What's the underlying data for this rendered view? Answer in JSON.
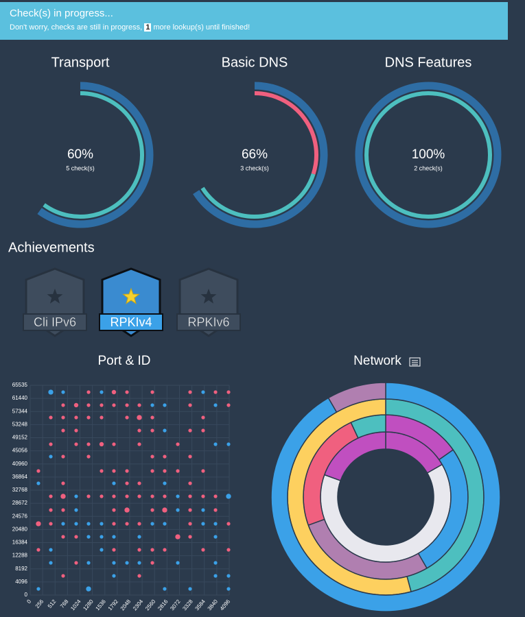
{
  "banner": {
    "title": "Check(s) in progress...",
    "text_before": "Don't worry, checks are still in progress,",
    "count": 1,
    "text_after": "more lookup(s) until finished!"
  },
  "achievements": {
    "title": "Achievements",
    "items": [
      {
        "label": "Cli IPv6",
        "earned": false
      },
      {
        "label": "RPKIv4",
        "earned": true
      },
      {
        "label": "RPKIv6",
        "earned": false
      }
    ]
  },
  "chart_data": [
    {
      "type": "gauge",
      "title": "Transport",
      "ylim": [
        0,
        100
      ],
      "value": 60,
      "value_label": "60%",
      "checks": "5 check(s)",
      "color": "#2e6da4",
      "segments": [
        {
          "color": "#4dbfbf",
          "value": 60
        }
      ]
    },
    {
      "type": "gauge",
      "title": "Basic DNS",
      "ylim": [
        0,
        100
      ],
      "value": 66,
      "value_label": "66%",
      "checks": "3 check(s)",
      "color": "#2e6da4",
      "segments": [
        {
          "color": "#f0607f",
          "value": 30
        },
        {
          "color": "#4dbfbf",
          "value": 36
        }
      ]
    },
    {
      "type": "gauge",
      "title": "DNS Features",
      "ylim": [
        0,
        100
      ],
      "value": 100,
      "value_label": "100%",
      "checks": "2 check(s)",
      "color": "#2e6da4",
      "segments": [
        {
          "color": "#4dbfbf",
          "value": 100
        }
      ]
    },
    {
      "type": "scatter",
      "title": "Port & ID",
      "grid": true,
      "xlim": [
        0,
        4096
      ],
      "xticks": [
        0,
        256,
        512,
        768,
        1024,
        1280,
        1536,
        1792,
        2048,
        2304,
        2560,
        2816,
        3072,
        3328,
        3584,
        3840,
        4096
      ],
      "ylim": [
        0,
        65535
      ],
      "yticks": [
        0,
        4096,
        8192,
        12288,
        16384,
        20480,
        24576,
        28672,
        32768,
        36864,
        40960,
        45056,
        49152,
        53248,
        57344,
        61440,
        65535
      ],
      "series": [
        {
          "color": "#3ba1e8",
          "x": [
            424,
            678,
            1469,
            3559,
            2514,
            2768,
            3814,
            2768,
            3814,
            4082,
            424,
            169,
            1723,
            2768,
            946,
            3037,
            4082,
            946,
            3037,
            3559,
            678,
            946,
            1201,
            1469,
            2514,
            2768,
            3559,
            3814,
            1201,
            1469,
            1723,
            2246,
            3814,
            424,
            1469,
            424,
            1201,
            1723,
            1992,
            2246,
            3037,
            3814,
            1723,
            3814,
            4082,
            169,
            1201,
            2768,
            3291,
            4082
          ],
          "values": [
            63395,
            63395,
            63395,
            63395,
            59326,
            59326,
            59326,
            51400,
            47118,
            47118,
            43264,
            34913,
            34913,
            34913,
            30843,
            30843,
            30843,
            26559,
            26559,
            26559,
            22275,
            22275,
            22275,
            22275,
            22275,
            22275,
            22275,
            22275,
            18205,
            18205,
            18205,
            18205,
            18205,
            14136,
            14136,
            10066,
            10066,
            10066,
            10066,
            10066,
            10066,
            10066,
            5997,
            5997,
            5997,
            1928,
            1928,
            1928,
            1928,
            1928
          ],
          "sizes": [
            2,
            1,
            1,
            1,
            1,
            1,
            1,
            1,
            1,
            1,
            1,
            1,
            1,
            1,
            1,
            1,
            2,
            1,
            1,
            1,
            1,
            1,
            1,
            1,
            1,
            1,
            1,
            1,
            1,
            1,
            1,
            1,
            1,
            1,
            1,
            1,
            1,
            1,
            1,
            1,
            1,
            1,
            1,
            1,
            1,
            1,
            2,
            1,
            1,
            1
          ]
        },
        {
          "color": "#f0607f",
          "x": [
            1201,
            1723,
            1992,
            2514,
            3291,
            3814,
            4082,
            678,
            946,
            1201,
            1469,
            1723,
            1992,
            2246,
            3291,
            4082,
            424,
            678,
            946,
            1201,
            1469,
            1992,
            2246,
            2514,
            3559,
            678,
            946,
            2246,
            2514,
            3291,
            3559,
            424,
            946,
            1201,
            1469,
            1723,
            2246,
            3037,
            678,
            1201,
            2514,
            2768,
            3291,
            169,
            1469,
            1723,
            1992,
            2514,
            2768,
            3037,
            3559,
            678,
            1992,
            2246,
            3291,
            424,
            678,
            1201,
            1469,
            1723,
            1992,
            2246,
            2514,
            2768,
            3291,
            3559,
            3814,
            424,
            678,
            1723,
            1992,
            2514,
            2768,
            3291,
            3814,
            169,
            424,
            1723,
            1992,
            2246,
            3291,
            4082,
            678,
            946,
            3037,
            3291,
            169,
            1723,
            2246,
            2514,
            2768,
            3559,
            4082,
            946,
            2514,
            678,
            2246
          ],
          "values": [
            63395,
            63395,
            63395,
            63395,
            63395,
            63395,
            63395,
            59326,
            59326,
            59326,
            59326,
            59326,
            59326,
            59326,
            59326,
            59326,
            55470,
            55470,
            55470,
            55470,
            55470,
            55470,
            55470,
            55470,
            55470,
            51400,
            51400,
            51400,
            51400,
            51400,
            51400,
            47118,
            47118,
            47118,
            47118,
            47118,
            47118,
            47118,
            43264,
            43264,
            43264,
            43264,
            43264,
            38767,
            38767,
            38767,
            38767,
            38767,
            38767,
            38767,
            38767,
            34913,
            34913,
            34913,
            34913,
            30843,
            30843,
            30843,
            30843,
            30843,
            30843,
            30843,
            30843,
            30843,
            30843,
            30843,
            30843,
            26559,
            26559,
            26559,
            26559,
            26559,
            26559,
            26559,
            26559,
            22275,
            22275,
            22275,
            22275,
            22275,
            22275,
            22275,
            18205,
            18205,
            18205,
            18205,
            14136,
            14136,
            14136,
            14136,
            14136,
            14136,
            14136,
            10066,
            10066,
            5997,
            5997
          ],
          "sizes": [
            1,
            1.5,
            1,
            1,
            1,
            1,
            1,
            1,
            1.5,
            1,
            1,
            1,
            1,
            1,
            1,
            1,
            1,
            1,
            1,
            1,
            1,
            1,
            2,
            1,
            1,
            1,
            1,
            1,
            1,
            1,
            1,
            1,
            1,
            1,
            1.5,
            1,
            1,
            1,
            1,
            1,
            1,
            1,
            1,
            1,
            1,
            1,
            1,
            1,
            1,
            1,
            1,
            1,
            1,
            1,
            1,
            1,
            2,
            1,
            1,
            1,
            1,
            1,
            1,
            1,
            1,
            1,
            1,
            1,
            1,
            1,
            2,
            1,
            2,
            1,
            1,
            2,
            1,
            1,
            1,
            1,
            1,
            1,
            1,
            1,
            2,
            1,
            1,
            1,
            1,
            1,
            1,
            1,
            1,
            1,
            1,
            1,
            1
          ]
        }
      ]
    },
    {
      "type": "sunburst",
      "title": "Network",
      "rings": [
        {
          "colors": [
            "#c04fc0",
            "#e8e8ee",
            "#c04fc0"
          ],
          "values": [
            60,
            230,
            70
          ]
        },
        {
          "colors": [
            "#c04fc0",
            "#3ba1e8",
            "#b07fb0",
            "#f0607f",
            "#4dbfbf"
          ],
          "values": [
            55,
            95,
            100,
            85,
            25
          ]
        },
        {
          "colors": [
            "#4dbfbf",
            "#fdd05f"
          ],
          "values": [
            165,
            195
          ]
        },
        {
          "colors": [
            "#3ba1e8",
            "#b07fb0"
          ],
          "values": [
            330,
            30
          ]
        }
      ]
    }
  ]
}
